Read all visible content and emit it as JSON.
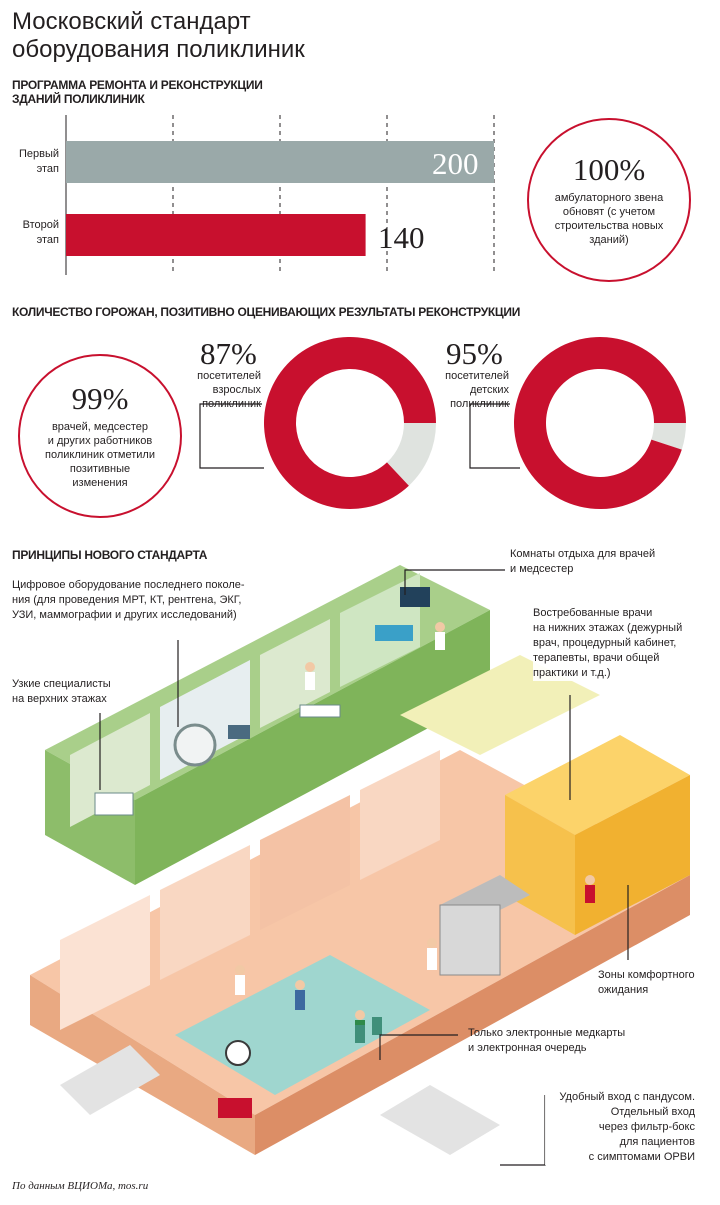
{
  "title_line1": "Московский стандарт",
  "title_line2": "оборудования поликлиник",
  "repair": {
    "heading_line1": "ПРОГРАММА РЕМОНТА И РЕКОНСТРУКЦИИ",
    "heading_line2": "ЗДАНИЙ ПОЛИКЛИНИК",
    "stage1_line1": "Первый",
    "stage1_line2": "этап",
    "stage2_line1": "Второй",
    "stage2_line2": "этап",
    "stage1_value": "200",
    "stage2_value": "140",
    "circle_pct": "100%",
    "circle_line1": "амбулаторного звена",
    "circle_line2": "обновят (с учетом",
    "circle_line3": "строительства новых",
    "circle_line4": "зданий)"
  },
  "chart_data": {
    "type": "bar",
    "categories": [
      "Первый этап",
      "Второй этап"
    ],
    "values": [
      200,
      140
    ],
    "colors": [
      "#9aa9a9",
      "#c8102e"
    ]
  },
  "satisfaction": {
    "heading": "КОЛИЧЕСТВО ГОРОЖАН, ПОЗИТИВНО ОЦЕНИВАЮЩИХ РЕЗУЛЬТАТЫ РЕКОНСТРУКЦИИ",
    "staff_pct": "99%",
    "staff_line1": "врачей, медсестер",
    "staff_line2": "и других работников",
    "staff_line3": "поликлиник отметили",
    "staff_line4": "позитивные",
    "staff_line5": "изменения",
    "adults_pct": "87%",
    "adults_value": 87,
    "adults_line1": "посетителей",
    "adults_line2": "взрослых",
    "adults_line3": "поликлиник",
    "kids_pct": "95%",
    "kids_value": 95,
    "kids_line1": "посетителей",
    "kids_line2": "детских",
    "kids_line3": "поликлиник",
    "accent_color": "#c8102e",
    "rest_color": "#dfe3df"
  },
  "principles": {
    "heading": "ПРИНЦИПЫ НОВОГО СТАНДАРТА",
    "c1_line1": "Цифровое оборудование последнего поколе-",
    "c1_line2": "ния (для проведения МРТ, КТ, рентгена, ЭКГ,",
    "c1_line3": "УЗИ, маммографии и других исследований)",
    "c2_line1": "Узкие специалисты",
    "c2_line2": "на верхних этажах",
    "c3_line1": "Комнаты отдыха для врачей",
    "c3_line2": "и медсестер",
    "c4_line1": "Востребованные врачи",
    "c4_line2": "на нижних этажах (дежурный",
    "c4_line3": "врач, процедурный кабинет,",
    "c4_line4": "терапевты, врачи общей",
    "c4_line5": "практики и т.д.)",
    "c5_line1": "Зоны комфортного",
    "c5_line2": "ожидания",
    "c6_line1": "Только электронные медкарты",
    "c6_line2": "и электронная очередь",
    "c7_line1": "Удобный вход с пандусом.",
    "c7_line2": "Отдельный вход",
    "c7_line3": "через фильтр-бокс",
    "c7_line4": "для пациентов",
    "c7_line5": "с симптомами ОРВИ"
  },
  "source": "По данным ВЦИОМа, mos.ru"
}
